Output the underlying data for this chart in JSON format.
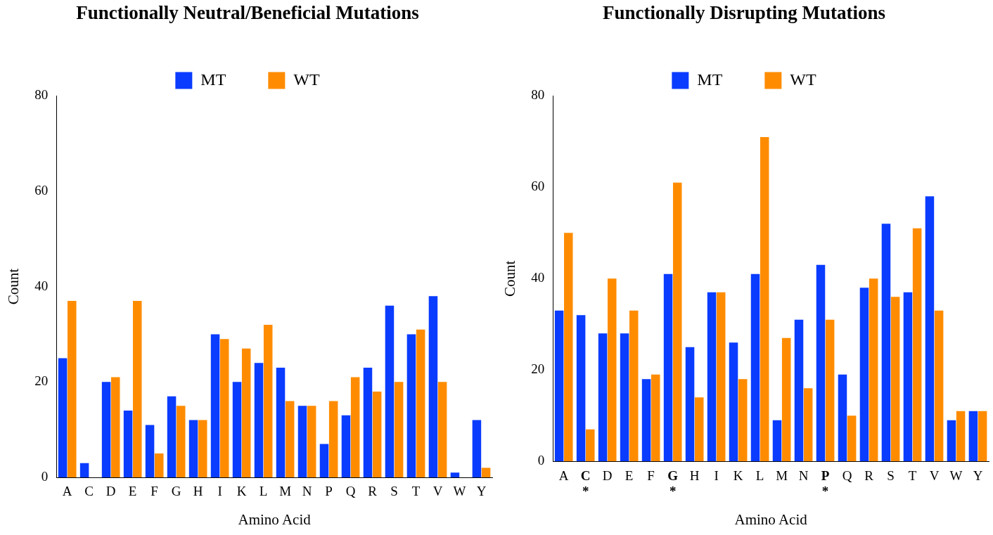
{
  "chart_data": [
    {
      "type": "bar",
      "title": "Functionally Neutral/Beneficial Mutations",
      "xlabel": "Amino Acid",
      "ylabel": "Count",
      "categories": [
        "A",
        "C",
        "D",
        "E",
        "F",
        "G",
        "H",
        "I",
        "K",
        "L",
        "M",
        "N",
        "P",
        "Q",
        "R",
        "S",
        "T",
        "V",
        "W",
        "Y"
      ],
      "series": [
        {
          "name": "MT",
          "color": "#0a3cff",
          "values": [
            25,
            3,
            20,
            14,
            11,
            17,
            12,
            30,
            20,
            24,
            23,
            15,
            7,
            13,
            23,
            36,
            30,
            38,
            1,
            12
          ]
        },
        {
          "name": "WT",
          "color": "#ff8c00",
          "values": [
            37,
            0,
            21,
            37,
            5,
            15,
            12,
            29,
            27,
            32,
            16,
            15,
            16,
            21,
            18,
            20,
            31,
            20,
            0,
            2
          ]
        }
      ],
      "ylim": [
        0,
        80
      ],
      "yticks": [
        0,
        20,
        40,
        60,
        80
      ],
      "grid": false,
      "legend": "top"
    },
    {
      "type": "bar",
      "title": "Functionally Disrupting Mutations",
      "xlabel": "Amino Acid",
      "ylabel": "Count",
      "categories": [
        "A",
        "C\n*",
        "D",
        "E",
        "F",
        "G\n*",
        "H",
        "I",
        "K",
        "L",
        "M",
        "N",
        "P\n*",
        "Q",
        "R",
        "S",
        "T",
        "V",
        "W",
        "Y"
      ],
      "series": [
        {
          "name": "MT",
          "color": "#0a3cff",
          "values": [
            33,
            32,
            28,
            28,
            18,
            41,
            25,
            37,
            26,
            41,
            9,
            31,
            43,
            19,
            38,
            52,
            37,
            58,
            9,
            11
          ]
        },
        {
          "name": "WT",
          "color": "#ff8c00",
          "values": [
            50,
            7,
            40,
            33,
            19,
            61,
            14,
            37,
            18,
            71,
            27,
            16,
            31,
            10,
            40,
            36,
            51,
            33,
            11,
            11
          ]
        }
      ],
      "ylim": [
        0,
        80
      ],
      "yticks": [
        0,
        20,
        40,
        60,
        80
      ],
      "grid": false,
      "legend": "top"
    }
  ]
}
